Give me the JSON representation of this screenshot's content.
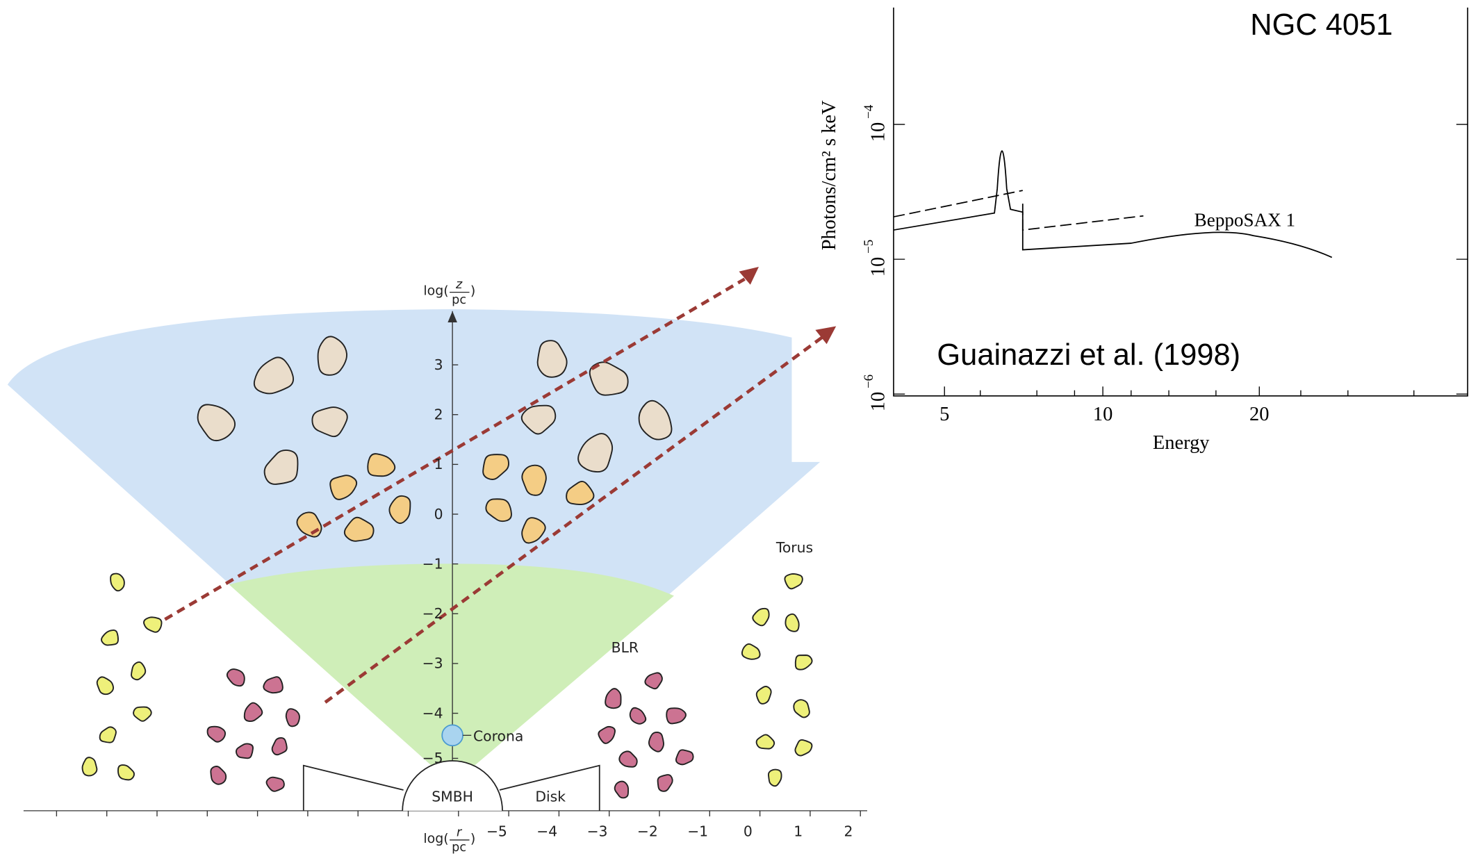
{
  "spectrum": {
    "title": "NGC 4051",
    "citation": "Guainazzi et al. (1998)",
    "curve_label": "BeppoSAX 1",
    "y_label": "Photons/cm² s keV",
    "x_label": "Energy",
    "x_ticks": [
      "5",
      "10",
      "20"
    ],
    "y_ticks": [
      {
        "base": "10",
        "exp": "−4"
      },
      {
        "base": "10",
        "exp": "−5"
      },
      {
        "base": "10",
        "exp": "−6"
      }
    ]
  },
  "diagram": {
    "z_axis_label": {
      "prefix": "log(",
      "num": "z",
      "den": "pc",
      "suffix": ")"
    },
    "z_ticks": [
      "3",
      "2",
      "1",
      "0",
      "−1",
      "−2",
      "−3",
      "−4",
      "−5"
    ],
    "r_axis_label": {
      "prefix": "log(",
      "num": "r",
      "den": "pc",
      "suffix": ")"
    },
    "r_ticks": [
      "−5",
      "−4",
      "−3",
      "−2",
      "−1",
      "0",
      "1",
      "2"
    ],
    "labels": {
      "torus": "Torus",
      "blr": "BLR",
      "corona": "Corona",
      "smbh": "SMBH",
      "disk": "Disk"
    }
  }
}
